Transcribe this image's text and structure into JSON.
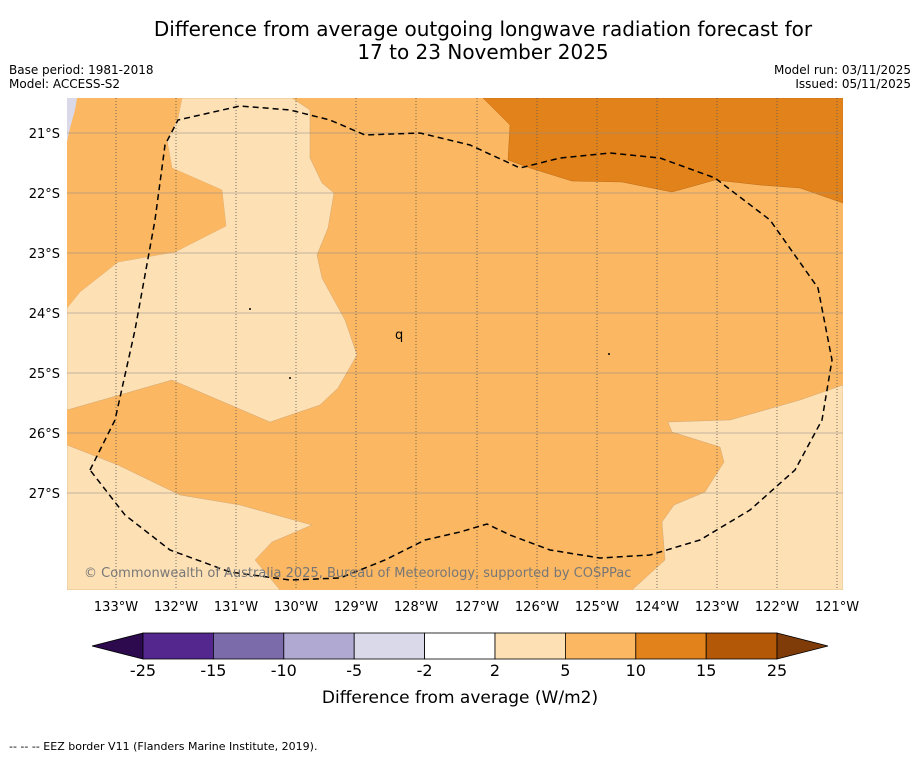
{
  "title": {
    "line1": "Difference from average outgoing longwave radiation forecast for",
    "line2": "17 to 23 November 2025"
  },
  "meta_left": {
    "base_period": "Base period: 1981-2018",
    "model": "Model: ACCESS-S2"
  },
  "meta_right": {
    "model_run": "Model run: 03/11/2025",
    "issued": "Issued: 05/11/2025"
  },
  "map": {
    "lat_labels": [
      "21°S",
      "22°S",
      "23°S",
      "24°S",
      "25°S",
      "26°S",
      "27°S"
    ],
    "lon_labels": [
      "133°W",
      "132°W",
      "131°W",
      "130°W",
      "129°W",
      "128°W",
      "127°W",
      "126°W",
      "125°W",
      "124°W",
      "123°W",
      "122°W",
      "121°W"
    ],
    "copyright": "© Commonwealth of Australia 2025, Bureau of Meteorology, supported by COSPPac",
    "island_marker": "q"
  },
  "colorbar": {
    "ticks": [
      "-25",
      "-15",
      "-10",
      "-5",
      "-2",
      "2",
      "5",
      "10",
      "15",
      "25"
    ],
    "colors": [
      "#2d0a4e",
      "#54278f",
      "#7c6baa",
      "#b0a9d1",
      "#d9d9ea",
      "#ffffff",
      "#fde0b4",
      "#fbb762",
      "#e2821a",
      "#b35806",
      "#7f3b08"
    ],
    "label": "Difference from average (W/m2)"
  },
  "footer": {
    "legend_line": "--  --  -- EEZ border V11 (Flanders Marine Institute, 2019)."
  }
}
